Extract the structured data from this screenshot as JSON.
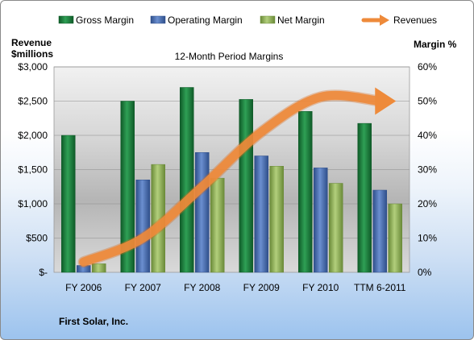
{
  "chart_data": {
    "type": "bar",
    "title": "12-Month Period Margins",
    "company": "First Solar, Inc.",
    "categories": [
      "FY 2006",
      "FY 2007",
      "FY 2008",
      "FY 2009",
      "FY 2010",
      "TTM 6-2011"
    ],
    "left_axis": {
      "label_line1": "Revenue",
      "label_line2": "$millions",
      "ylim": [
        0,
        3000
      ],
      "ticks": [
        "$-",
        "$500",
        "$1,000",
        "$1,500",
        "$2,000",
        "$2,500",
        "$3,000"
      ]
    },
    "right_axis": {
      "label": "Margin %",
      "ylim": [
        0,
        60
      ],
      "ticks": [
        "0%",
        "10%",
        "20%",
        "30%",
        "40%",
        "50%",
        "60%"
      ]
    },
    "series": [
      {
        "name": "Gross Margin",
        "axis": "right",
        "color": "#1e7a3c",
        "values": [
          40,
          50,
          54,
          50.5,
          47,
          43.5
        ]
      },
      {
        "name": "Operating Margin",
        "axis": "right",
        "color": "#4a6fb0",
        "values": [
          2,
          27,
          35,
          34,
          30.5,
          24
        ]
      },
      {
        "name": "Net Margin",
        "axis": "right",
        "color": "#8fb05a",
        "values": [
          2.5,
          31.5,
          27.5,
          31,
          26,
          20
        ]
      },
      {
        "name": "Revenues",
        "axis": "left",
        "type": "line",
        "color": "#ee8a3a",
        "values": [
          150,
          500,
          1250,
          2050,
          2560,
          2500
        ]
      }
    ],
    "legend_position": "top",
    "grid": true
  }
}
